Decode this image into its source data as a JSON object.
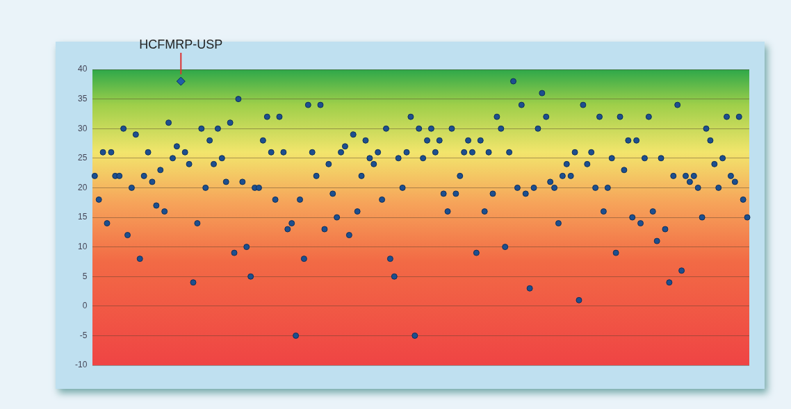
{
  "chart_data": {
    "type": "scatter",
    "categories": [
      null,
      null,
      null,
      null,
      null,
      null,
      null,
      null,
      null,
      null,
      null,
      null,
      null,
      null,
      null,
      null,
      null,
      null,
      null,
      null,
      null,
      null,
      null,
      null,
      null,
      null,
      null,
      null,
      null,
      null,
      null,
      null,
      null,
      null,
      null,
      null,
      null,
      null,
      null,
      null,
      null,
      null,
      null,
      null,
      null,
      null,
      null,
      null,
      null,
      null,
      null,
      null,
      null,
      null,
      null,
      null,
      null,
      null,
      null,
      null,
      null,
      null,
      null,
      null,
      null,
      null,
      null,
      null,
      null,
      null,
      null,
      null,
      null,
      null,
      null,
      null,
      null,
      null,
      null,
      null,
      null,
      null,
      null,
      null,
      null,
      null,
      null,
      null,
      null,
      null,
      null,
      null,
      null,
      null,
      null,
      null,
      null,
      null,
      null,
      null,
      null,
      null,
      null,
      null,
      null,
      null,
      null,
      null,
      null,
      null,
      null,
      null,
      null,
      null,
      null,
      null,
      null,
      null,
      null,
      null,
      null,
      null,
      null,
      null,
      null,
      null,
      null,
      null,
      null,
      null,
      null,
      null,
      null,
      null,
      null,
      null,
      null,
      null,
      null,
      null,
      null,
      null,
      null,
      null,
      null,
      null,
      null,
      null,
      null,
      null,
      null,
      null,
      null,
      null,
      null,
      null,
      null,
      null,
      null,
      null
    ],
    "series": [
      {
        "color": "#1d4f8f",
        "marker": "circle",
        "values": [
          22,
          18,
          26,
          14,
          26,
          22,
          22,
          30,
          12,
          20,
          29,
          8,
          22,
          26,
          21,
          17,
          23,
          16,
          31,
          25,
          27,
          null,
          26,
          24,
          4,
          14,
          30,
          20,
          28,
          24,
          30,
          25,
          21,
          31,
          9,
          35,
          21,
          10,
          5,
          20,
          20,
          28,
          32,
          26,
          18,
          32,
          26,
          13,
          14,
          -5,
          18,
          8,
          34,
          26,
          22,
          34,
          13,
          24,
          19,
          15,
          26,
          27,
          12,
          29,
          16,
          22,
          28,
          25,
          24,
          26,
          18,
          30,
          8,
          5,
          25,
          20,
          26,
          32,
          -5,
          30,
          25,
          28,
          30,
          26,
          28,
          19,
          16,
          30,
          19,
          22,
          26,
          28,
          26,
          9,
          28,
          16,
          26,
          19,
          32,
          30,
          10,
          26,
          38,
          20,
          34,
          19,
          3,
          20,
          30,
          36,
          32,
          21,
          20,
          14,
          22,
          24,
          22,
          26,
          1,
          34,
          24,
          26,
          20,
          32,
          16,
          20,
          25,
          9,
          32,
          23,
          28,
          15,
          28,
          14,
          25,
          32,
          16,
          11,
          25,
          13,
          4,
          22,
          34,
          6,
          22,
          21,
          22,
          20,
          15,
          30,
          28,
          24,
          20,
          25,
          32,
          22,
          21,
          32,
          18,
          15
        ]
      },
      {
        "color": "#1f5fa8",
        "marker": "diamond",
        "values": [
          null,
          null,
          null,
          null,
          null,
          null,
          null,
          null,
          null,
          null,
          null,
          null,
          null,
          null,
          null,
          null,
          null,
          null,
          null,
          null,
          null,
          38,
          null,
          null,
          null,
          null,
          null,
          null,
          null,
          null,
          null,
          null,
          null,
          null,
          null,
          null,
          null,
          null,
          null,
          null,
          null,
          null,
          null,
          null,
          null,
          null,
          null,
          null,
          null,
          null,
          null,
          null,
          null,
          null,
          null,
          null,
          null,
          null,
          null,
          null,
          null,
          null,
          null,
          null,
          null,
          null,
          null,
          null,
          null,
          null,
          null,
          null,
          null,
          null,
          null,
          null,
          null,
          null,
          null,
          null,
          null,
          null,
          null,
          null,
          null,
          null,
          null,
          null,
          null,
          null,
          null,
          null,
          null,
          null,
          null,
          null,
          null,
          null,
          null,
          null,
          null,
          null,
          null,
          null,
          null,
          null,
          null,
          null,
          null,
          null,
          null,
          null,
          null,
          null,
          null,
          null,
          null,
          null,
          null,
          null,
          null,
          null,
          null,
          null,
          null,
          null,
          null,
          null,
          null,
          null,
          null,
          null,
          null,
          null,
          null,
          null,
          null,
          null,
          null,
          null,
          null,
          null,
          null,
          null,
          null,
          null,
          null,
          null,
          null,
          null,
          null,
          null,
          null,
          null,
          null,
          null,
          null,
          null,
          null,
          null
        ]
      }
    ],
    "ylim": [
      -10,
      40
    ],
    "yticks": [
      -10,
      -5,
      0,
      5,
      10,
      15,
      20,
      25,
      30,
      35,
      40
    ],
    "grid": "y",
    "tick_labels": "y",
    "annotations": [
      {
        "text": "HCFMRP-USP",
        "y": 38
      }
    ]
  }
}
